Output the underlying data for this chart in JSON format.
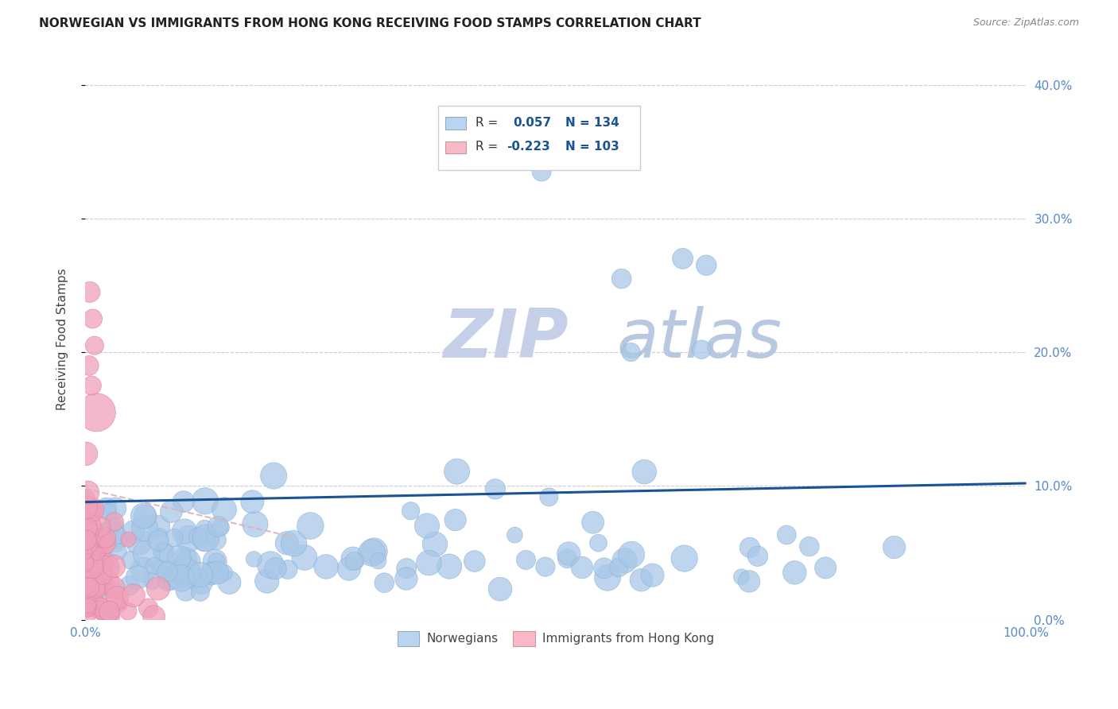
{
  "title": "NORWEGIAN VS IMMIGRANTS FROM HONG KONG RECEIVING FOOD STAMPS CORRELATION CHART",
  "source": "Source: ZipAtlas.com",
  "ylabel": "Receiving Food Stamps",
  "xlim": [
    0,
    1.0
  ],
  "ylim": [
    0,
    0.42
  ],
  "xtick_vals": [
    0.0,
    0.2,
    0.4,
    0.6,
    0.8,
    1.0
  ],
  "xtick_labels": [
    "0.0%",
    "",
    "",
    "",
    "",
    "100.0%"
  ],
  "ytick_vals": [
    0.0,
    0.1,
    0.2,
    0.3,
    0.4
  ],
  "ytick_labels_right": [
    "0.0%",
    "10.0%",
    "20.0%",
    "30.0%",
    "40.0%"
  ],
  "norwegian_R": 0.057,
  "norwegian_N": 134,
  "hk_R": -0.223,
  "hk_N": 103,
  "norwegian_color": "#a8c8e8",
  "norwegian_edge_color": "#8ab0d8",
  "hk_color": "#f0a0b8",
  "hk_edge_color": "#d880a0",
  "trendline_nor_color": "#1a5296",
  "trendline_hk_color": "#e0b0b8",
  "legend_nor_color": "#b8d4f0",
  "legend_hk_color": "#f8b8c8",
  "background_color": "#ffffff",
  "grid_color": "#ccccdd",
  "watermark_color": "#d8dff0",
  "title_fontsize": 11,
  "source_fontsize": 9,
  "legend_text_color": "#1a5296",
  "axis_text_color": "#5588cc",
  "ylabel_color": "#444444"
}
